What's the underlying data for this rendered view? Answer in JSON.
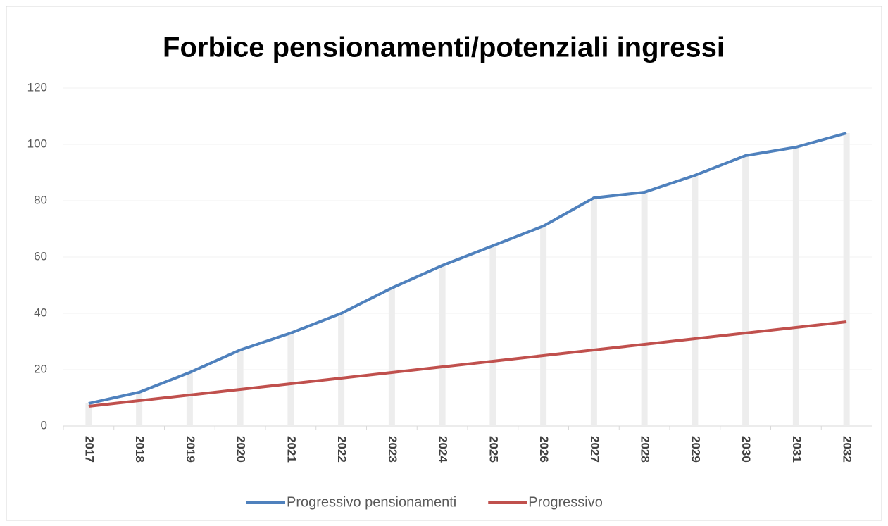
{
  "chart_data": {
    "type": "line",
    "title": "Forbice pensionamenti/potenziali ingressi",
    "categories": [
      "2017",
      "2018",
      "2019",
      "2020",
      "2021",
      "2022",
      "2023",
      "2024",
      "2025",
      "2026",
      "2027",
      "2028",
      "2029",
      "2030",
      "2031",
      "2032"
    ],
    "series": [
      {
        "name": "Progressivo pensionamenti",
        "color": "#4f81bd",
        "values": [
          8,
          12,
          19,
          27,
          33,
          40,
          49,
          57,
          64,
          71,
          81,
          83,
          89,
          96,
          99,
          104
        ]
      },
      {
        "name": "Progressivo",
        "color": "#c0504d",
        "values": [
          7,
          9,
          11,
          13,
          15,
          17,
          19,
          21,
          23,
          25,
          27,
          29,
          31,
          33,
          35,
          37
        ]
      }
    ],
    "ylim": [
      0,
      120
    ],
    "yticks": [
      0,
      20,
      40,
      60,
      80,
      100,
      120
    ],
    "grid": true,
    "legend": "bottom"
  }
}
